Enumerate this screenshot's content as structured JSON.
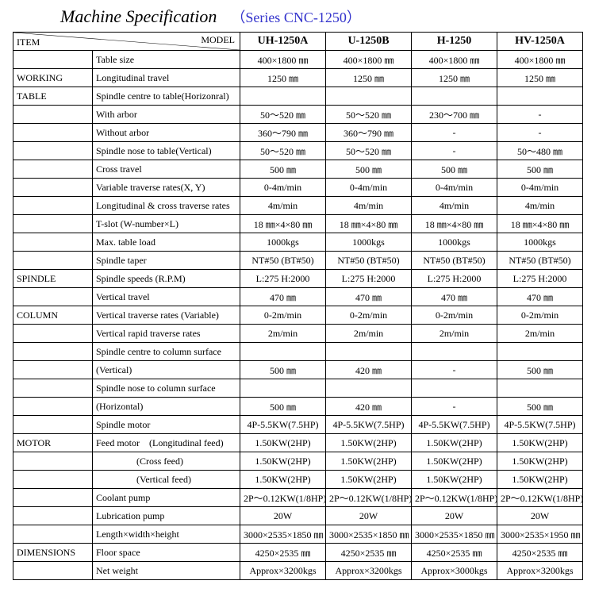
{
  "title": "Machine Specification",
  "series_prefix": "（Series ",
  "series_code": "CNC-1250",
  "series_suffix": "）",
  "header": {
    "item_label": "ITEM",
    "model_label": "MODEL",
    "models": [
      "UH-1250A",
      "U-1250B",
      "H-1250",
      "HV-1250A"
    ]
  },
  "colors": {
    "series": "#3333cc",
    "border": "#000000",
    "background": "#ffffff",
    "text": "#000000"
  },
  "rows": [
    {
      "section": "",
      "attr": "Table size",
      "v": [
        "400×1800 ㎜",
        "400×1800 ㎜",
        "400×1800 ㎜",
        "400×1800 ㎜"
      ]
    },
    {
      "section": "WORKING",
      "attr": "Longitudinal travel",
      "v": [
        "1250 ㎜",
        "1250 ㎜",
        "1250 ㎜",
        "1250 ㎜"
      ]
    },
    {
      "section": "TABLE",
      "attr": "Spindle centre to table(Horizonral)",
      "v": [
        "",
        "",
        "",
        ""
      ]
    },
    {
      "section": "",
      "attr": "With arbor",
      "v": [
        "50～520 ㎜",
        "50～520 ㎜",
        "230～700 ㎜",
        "-"
      ]
    },
    {
      "section": "",
      "attr": "Without arbor",
      "v": [
        "360～790 ㎜",
        "360～790 ㎜",
        "-",
        "-"
      ]
    },
    {
      "section": "",
      "attr": "Spindle nose to table(Vertical)",
      "v": [
        "50～520 ㎜",
        "50～520 ㎜",
        "-",
        "50～480 ㎜"
      ]
    },
    {
      "section": "",
      "attr": "Cross travel",
      "v": [
        "500 ㎜",
        "500 ㎜",
        "500 ㎜",
        "500 ㎜"
      ]
    },
    {
      "section": "",
      "attr": "Variable traverse rates(X, Y)",
      "v": [
        "0-4m/min",
        "0-4m/min",
        "0-4m/min",
        "0-4m/min"
      ]
    },
    {
      "section": "",
      "attr": "Longitudinal & cross traverse rates",
      "v": [
        "4m/min",
        "4m/min",
        "4m/min",
        "4m/min"
      ]
    },
    {
      "section": "",
      "attr": "T-slot (W-number×L)",
      "v": [
        "18 ㎜×4×80 ㎜",
        "18 ㎜×4×80 ㎜",
        "18 ㎜×4×80 ㎜",
        "18 ㎜×4×80 ㎜"
      ]
    },
    {
      "section": "",
      "attr": "Max. table load",
      "v": [
        "1000kgs",
        "1000kgs",
        "1000kgs",
        "1000kgs"
      ]
    },
    {
      "section": "",
      "attr": "Spindle taper",
      "v": [
        "NT#50 (BT#50)",
        "NT#50 (BT#50)",
        "NT#50 (BT#50)",
        "NT#50 (BT#50)"
      ]
    },
    {
      "section": "SPINDLE",
      "attr": "Spindle speeds (R.P.M)",
      "v": [
        "L:275   H:2000",
        "L:275   H:2000",
        "L:275   H:2000",
        "L:275   H:2000"
      ]
    },
    {
      "section": "",
      "attr": "Vertical travel",
      "v": [
        "470 ㎜",
        "470 ㎜",
        "470 ㎜",
        "470 ㎜"
      ]
    },
    {
      "section": "COLUMN",
      "attr": "Vertical traverse rates (Variable)",
      "v": [
        "0-2m/min",
        "0-2m/min",
        "0-2m/min",
        "0-2m/min"
      ]
    },
    {
      "section": "",
      "attr": "Vertical rapid traverse rates",
      "v": [
        "2m/min",
        "2m/min",
        "2m/min",
        "2m/min"
      ]
    },
    {
      "section": "",
      "attr": "Spindle centre to column surface",
      "v": [
        "",
        "",
        "",
        ""
      ]
    },
    {
      "section": "",
      "attr": "(Vertical)",
      "v": [
        "500 ㎜",
        "420 ㎜",
        "-",
        "500 ㎜"
      ]
    },
    {
      "section": "",
      "attr": "Spindle nose to column surface",
      "v": [
        "",
        "",
        "",
        ""
      ]
    },
    {
      "section": "",
      "attr": "(Horizontal)",
      "v": [
        "500 ㎜",
        "420 ㎜",
        "-",
        "500 ㎜"
      ]
    },
    {
      "section": "",
      "attr": "Spindle motor",
      "v": [
        "4P-5.5KW(7.5HP)",
        "4P-5.5KW(7.5HP)",
        "4P-5.5KW(7.5HP)",
        "4P-5.5KW(7.5HP)"
      ]
    },
    {
      "section": "MOTOR",
      "attr": "Feed motor    (Longitudinal feed)",
      "v": [
        "1.50KW(2HP)",
        "1.50KW(2HP)",
        "1.50KW(2HP)",
        "1.50KW(2HP)"
      ]
    },
    {
      "section": "",
      "attr": "                 (Cross feed)",
      "v": [
        "1.50KW(2HP)",
        "1.50KW(2HP)",
        "1.50KW(2HP)",
        "1.50KW(2HP)"
      ]
    },
    {
      "section": "",
      "attr": "                 (Vertical feed)",
      "v": [
        "1.50KW(2HP)",
        "1.50KW(2HP)",
        "1.50KW(2HP)",
        "1.50KW(2HP)"
      ]
    },
    {
      "section": "",
      "attr": "Coolant pump",
      "v": [
        "2P～0.12KW(1/8HP)",
        "2P～0.12KW(1/8HP)",
        "2P～0.12KW(1/8HP)",
        "2P～0.12KW(1/8HP)"
      ]
    },
    {
      "section": "",
      "attr": "Lubrication pump",
      "v": [
        "20W",
        "20W",
        "20W",
        "20W"
      ]
    },
    {
      "section": "",
      "attr": "Length×width×height",
      "v": [
        "3000×2535×1850 ㎜",
        "3000×2535×1850 ㎜",
        "3000×2535×1850 ㎜",
        "3000×2535×1950 ㎜"
      ]
    },
    {
      "section": "DIMENSIONS",
      "attr": "Floor space",
      "v": [
        "4250×2535 ㎜",
        "4250×2535 ㎜",
        "4250×2535 ㎜",
        "4250×2535 ㎜"
      ]
    },
    {
      "section": "",
      "attr": "Net weight",
      "v": [
        "Approx×3200kgs",
        "Approx×3200kgs",
        "Approx×3000kgs",
        "Approx×3200kgs"
      ]
    }
  ]
}
